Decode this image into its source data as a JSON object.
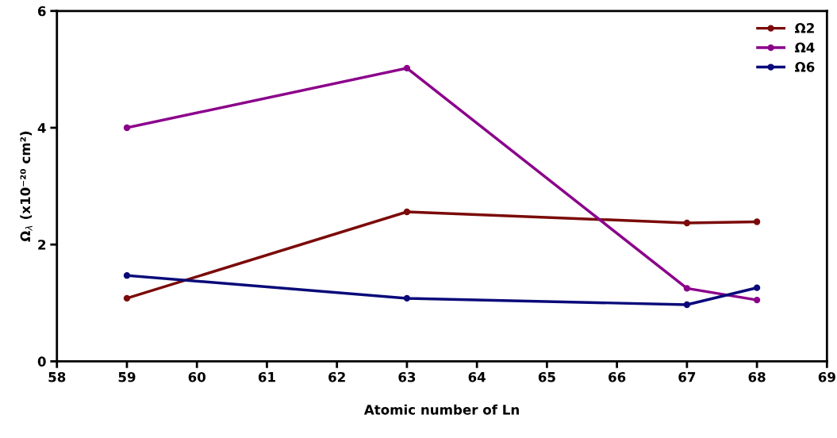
{
  "chart_data": {
    "type": "line",
    "xlabel": "Atomic number of Ln",
    "ylabel": "Ω$_{λ}$ (x10⁻²⁰ cm²)",
    "x": [
      59,
      63,
      67,
      68
    ],
    "series": [
      {
        "name": "Ω2",
        "color": "#7b0a0a",
        "values": [
          1.08,
          2.56,
          2.37,
          2.39
        ]
      },
      {
        "name": "Ω4",
        "color": "#8b008b",
        "values": [
          4.0,
          5.02,
          1.25,
          1.05
        ]
      },
      {
        "name": "Ω6",
        "color": "#0a0a7a",
        "values": [
          1.47,
          1.08,
          0.97,
          1.26
        ]
      }
    ],
    "xlim": [
      58,
      69
    ],
    "xticks": [
      58,
      59,
      60,
      61,
      62,
      63,
      64,
      65,
      66,
      67,
      68,
      69
    ],
    "ylim": [
      0,
      6
    ],
    "yticks": [
      0,
      2,
      4,
      6
    ],
    "marker": "circle",
    "legend": "top right",
    "grid": false
  }
}
